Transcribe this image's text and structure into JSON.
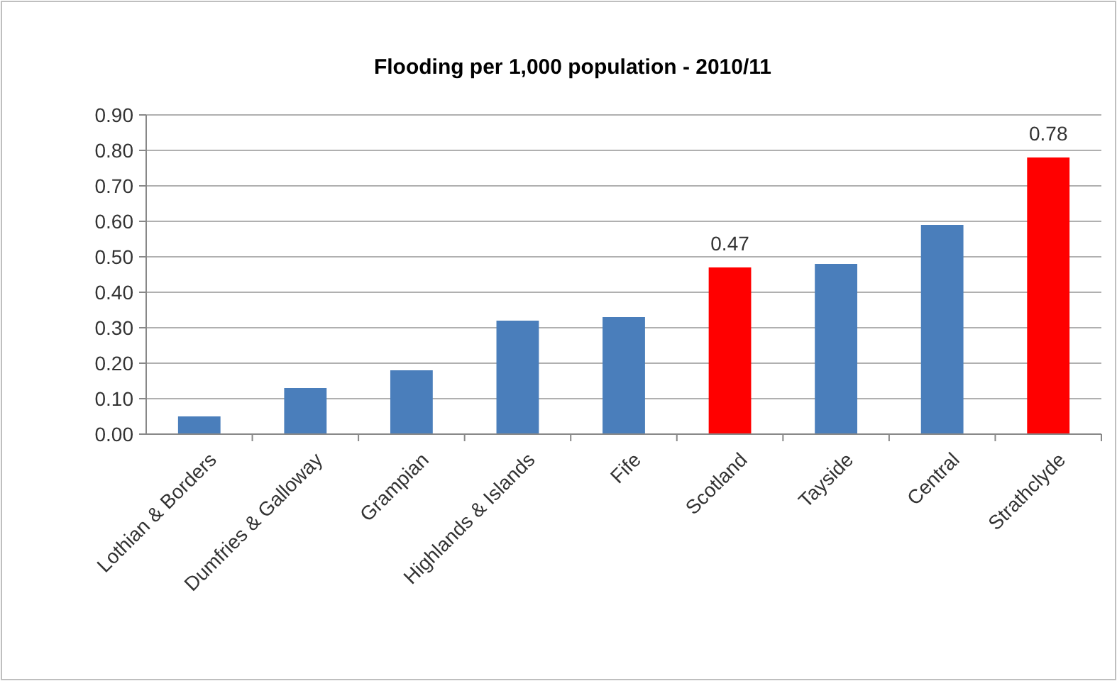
{
  "chart_data": {
    "type": "bar",
    "title": "Flooding per 1,000 population - 2010/11",
    "categories": [
      "Lothian & Borders",
      "Dumfries & Galloway",
      "Grampian",
      "Highlands & Islands",
      "Fife",
      "Scotland",
      "Tayside",
      "Central",
      "Strathclyde"
    ],
    "values": [
      0.05,
      0.13,
      0.18,
      0.32,
      0.33,
      0.47,
      0.48,
      0.59,
      0.78
    ],
    "colors": [
      "#4a7ebb",
      "#4a7ebb",
      "#4a7ebb",
      "#4a7ebb",
      "#4a7ebb",
      "#ff0000",
      "#4a7ebb",
      "#4a7ebb",
      "#ff0000"
    ],
    "value_labels": [
      null,
      null,
      null,
      null,
      null,
      "0.47",
      null,
      null,
      "0.78"
    ],
    "ylim": [
      0,
      0.9
    ],
    "yticks": [
      {
        "value": 0,
        "label": "0.00"
      },
      {
        "value": 0.1,
        "label": "0.10"
      },
      {
        "value": 0.2,
        "label": "0.20"
      },
      {
        "value": 0.3,
        "label": "0.30"
      },
      {
        "value": 0.4,
        "label": "0.40"
      },
      {
        "value": 0.5,
        "label": "0.50"
      },
      {
        "value": 0.6,
        "label": "0.60"
      },
      {
        "value": 0.7,
        "label": "0.70"
      },
      {
        "value": 0.8,
        "label": "0.80"
      },
      {
        "value": 0.9,
        "label": "0.90"
      }
    ],
    "grid": "y"
  }
}
